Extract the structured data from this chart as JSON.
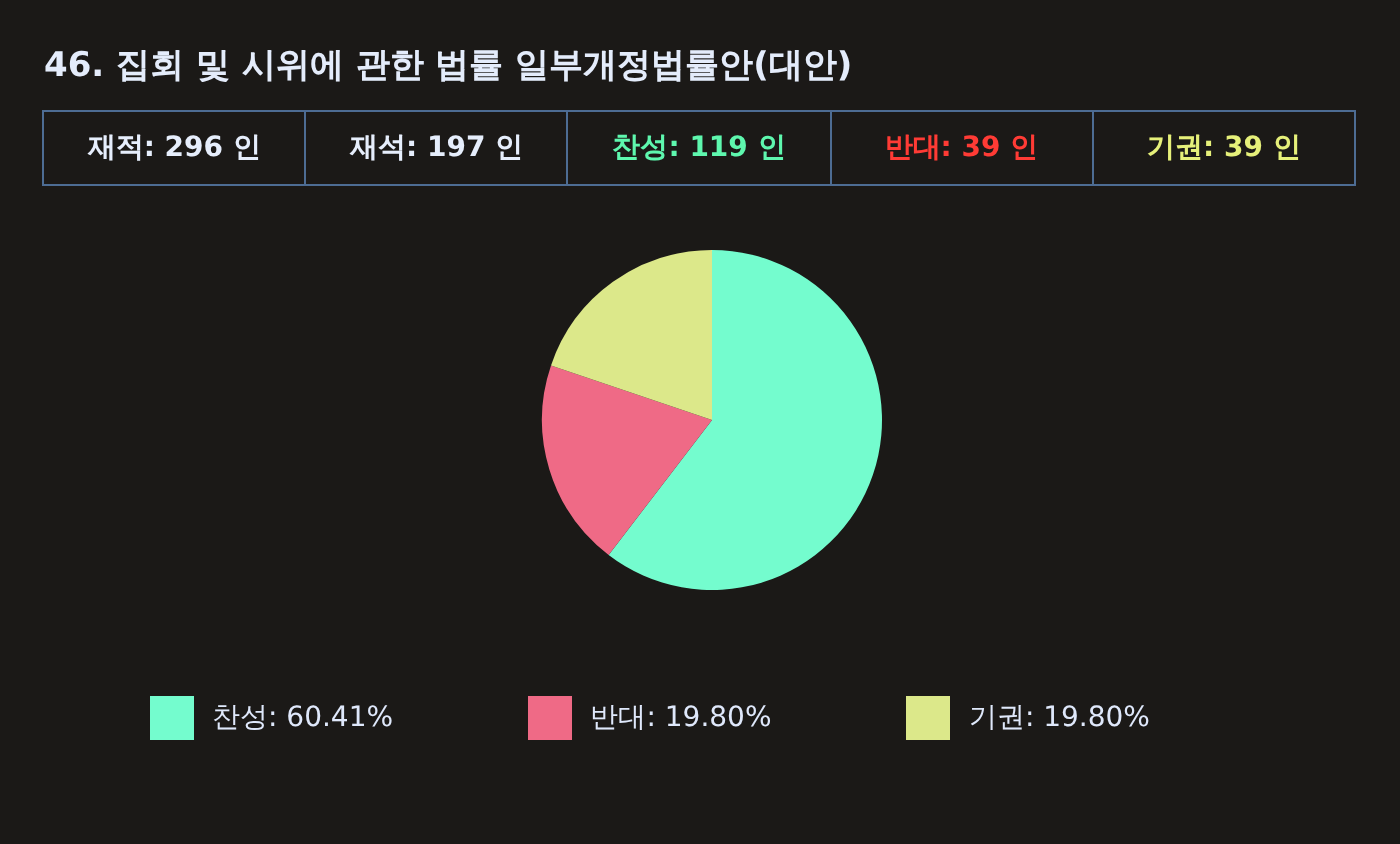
{
  "chart_data": {
    "type": "pie",
    "title": "46. 집회 및 시위에 관한 법률 일부개정법률안(대안)",
    "annotations": [
      "재적: 296 인",
      "재석: 197 인",
      "찬성: 119 인",
      "반대: 39 인",
      "기권: 39 인"
    ],
    "categories": [
      "찬성",
      "반대",
      "기권"
    ],
    "values": [
      60.41,
      19.8,
      19.8
    ],
    "value_labels": [
      "60.41%",
      "19.80%",
      "19.80%"
    ],
    "colors": [
      "#74fcce",
      "#ef6a86",
      "#dce88a"
    ],
    "legend": "bottom"
  }
}
